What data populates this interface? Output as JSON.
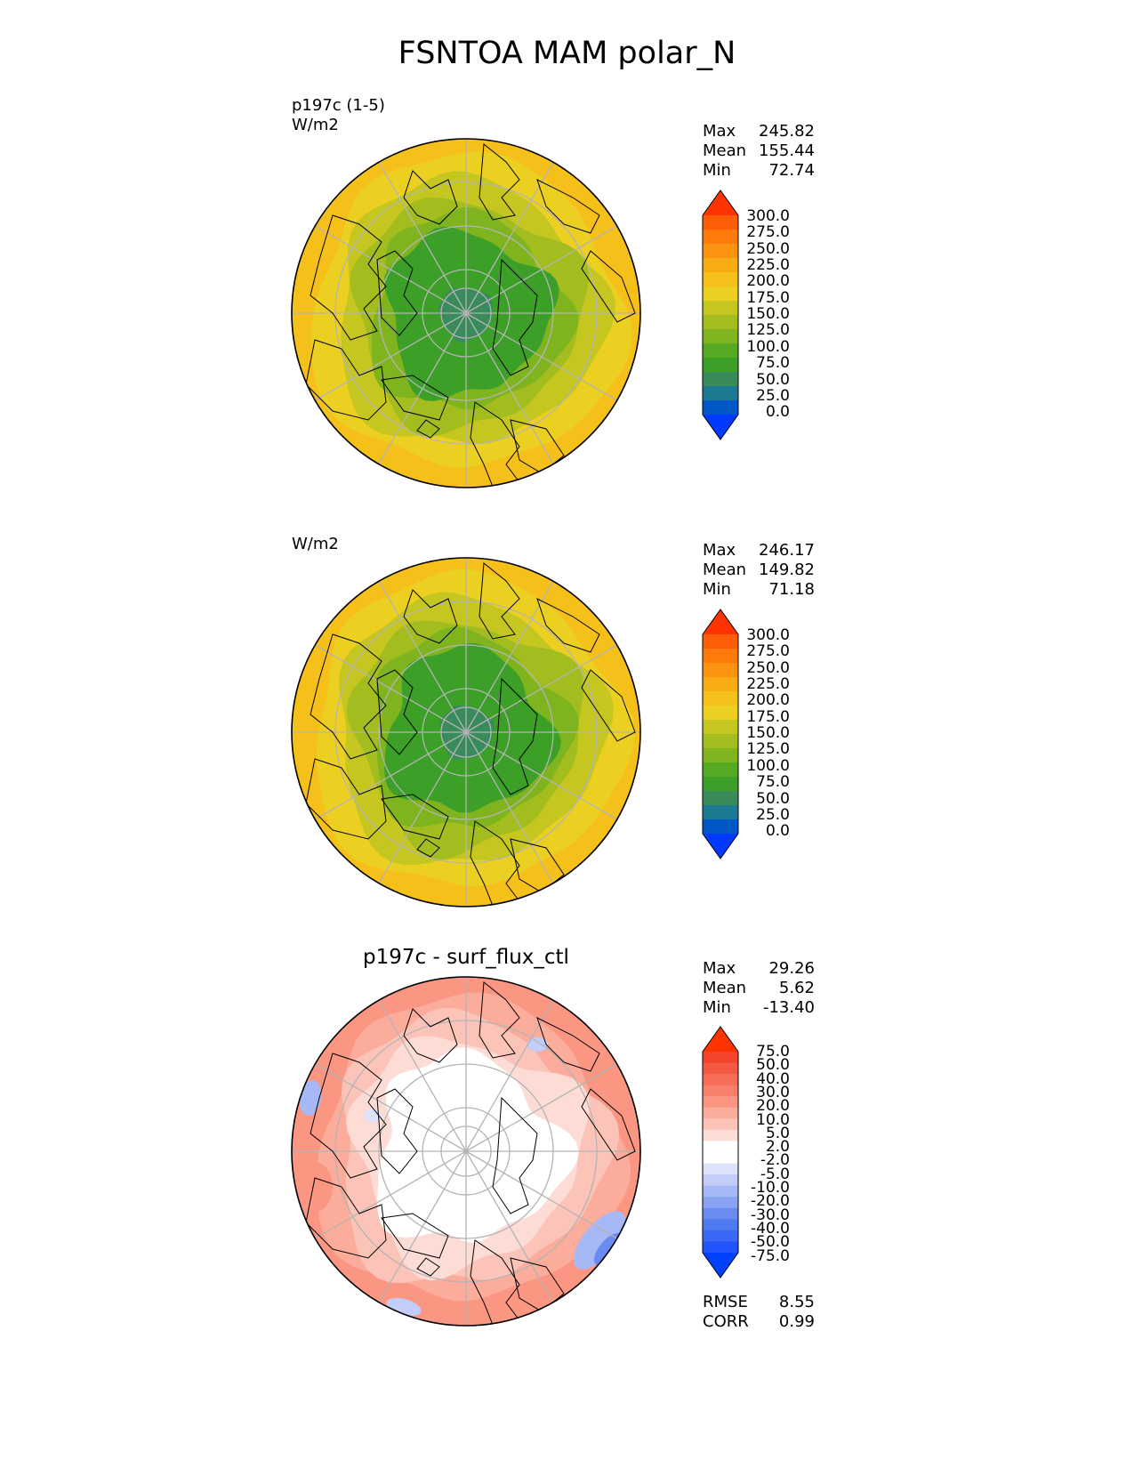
{
  "figure_title": "FSNTOA MAM polar_N",
  "colors": {
    "abs_palette": [
      "#0039ff",
      "#0057c8",
      "#1c7a92",
      "#3a8b5c",
      "#3c9f28",
      "#55aa22",
      "#7fb41e",
      "#a3bd1f",
      "#c5c61f",
      "#ecd021",
      "#f5c01a",
      "#f9ab14",
      "#fb9310",
      "#fd7a0b",
      "#fe5d08",
      "#ff3300"
    ],
    "diff_palette": [
      "#0040ff",
      "#2255ff",
      "#3b68f5",
      "#4f7af1",
      "#6a8cf2",
      "#8aa3f5",
      "#a7b8f7",
      "#c3cdf9",
      "#dde3fb",
      "#ffffff",
      "#ffffff",
      "#fddcd6",
      "#fcc4b8",
      "#fbac9b",
      "#fa9682",
      "#f8806b",
      "#f66e57",
      "#f35a41",
      "#f3452b",
      "#ff3300"
    ],
    "grid": "#b4b4b4",
    "coast": "#000000"
  },
  "panels": [
    {
      "title": "",
      "left_label": "p197c (1-5)",
      "units": "W/m2",
      "stats": {
        "max_label": "Max",
        "max": "245.82",
        "mean_label": "Mean",
        "mean": "155.44",
        "min_label": "Min",
        "min": "72.74"
      }
    },
    {
      "title": "",
      "left_label": "",
      "units": "W/m2",
      "stats": {
        "max_label": "Max",
        "max": "246.17",
        "mean_label": "Mean",
        "mean": "149.82",
        "min_label": "Min",
        "min": "71.18"
      }
    },
    {
      "title": "p197c - surf_flux_ctl",
      "left_label": "",
      "units": "",
      "stats": {
        "max_label": "Max",
        "max": "29.26",
        "mean_label": "Mean",
        "mean": "5.62",
        "min_label": "Min",
        "min": "-13.40"
      },
      "rmse_label": "RMSE",
      "rmse": "8.55",
      "corr_label": "CORR",
      "corr": "0.99"
    }
  ],
  "chart_data": [
    {
      "type": "heatmap",
      "projection": "north polar stereographic",
      "field": "FSNTOA",
      "units": "W/m2",
      "colorbar_levels": [
        "0.0",
        "25.0",
        "50.0",
        "75.0",
        "100.0",
        "125.0",
        "150.0",
        "175.0",
        "200.0",
        "225.0",
        "250.0",
        "275.0",
        "300.0"
      ],
      "colorbar_extend": "both",
      "range": [
        72.74,
        245.82
      ],
      "mean": 155.44,
      "pattern": "low values (50-125) over the Arctic Ocean and polar cap, increasing to 175-250 toward the lower latitudes"
    },
    {
      "type": "heatmap",
      "projection": "north polar stereographic",
      "field": "FSNTOA",
      "units": "W/m2",
      "colorbar_levels": [
        "0.0",
        "25.0",
        "50.0",
        "75.0",
        "100.0",
        "125.0",
        "150.0",
        "175.0",
        "200.0",
        "225.0",
        "250.0",
        "275.0",
        "300.0"
      ],
      "colorbar_extend": "both",
      "range": [
        71.18,
        246.17
      ],
      "mean": 149.82
    },
    {
      "type": "heatmap",
      "projection": "north polar stereographic",
      "field": "FSNTOA difference",
      "colorbar_levels": [
        "-75.0",
        "-50.0",
        "-40.0",
        "-30.0",
        "-20.0",
        "-10.0",
        "-5.0",
        "-2.0",
        "2.0",
        "5.0",
        "10.0",
        "20.0",
        "30.0",
        "40.0",
        "50.0",
        "75.0"
      ],
      "colorbar_extend": "both",
      "range": [
        -13.4,
        29.26
      ],
      "mean": 5.62,
      "rmse": 8.55,
      "corr": 0.99
    }
  ]
}
